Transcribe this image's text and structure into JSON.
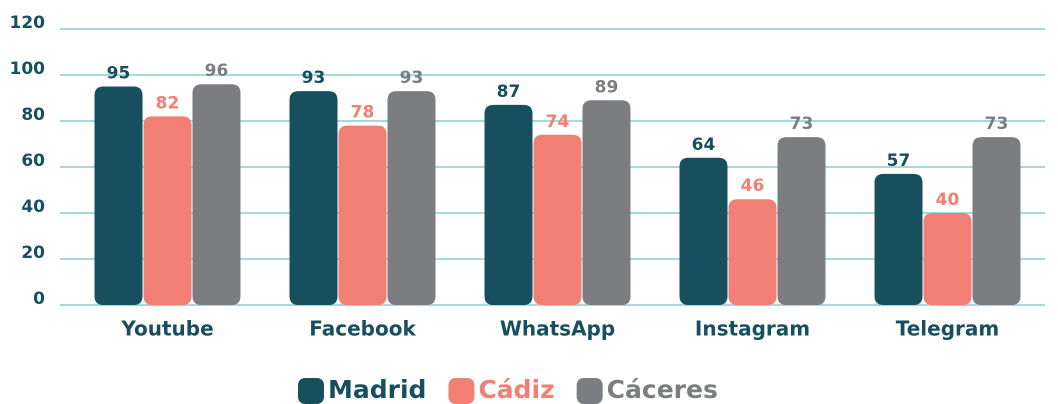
{
  "chart_data": {
    "type": "bar",
    "categories": [
      "Youtube",
      "Facebook",
      "WhatsApp",
      "Instagram",
      "Telegram"
    ],
    "series": [
      {
        "name": "Madrid",
        "color": "#174f5f",
        "values": [
          95,
          93,
          87,
          64,
          57
        ]
      },
      {
        "name": "Cádiz",
        "color": "#f27f74",
        "values": [
          82,
          78,
          74,
          46,
          40
        ]
      },
      {
        "name": "Cáceres",
        "color": "#7b7d80",
        "values": [
          96,
          93,
          89,
          73,
          73
        ]
      }
    ],
    "ylim": [
      0,
      120
    ],
    "yticks": [
      0,
      20,
      40,
      60,
      80,
      100,
      120
    ],
    "grid": true,
    "grid_color": "#a6d9d9",
    "legend": "bottom"
  }
}
